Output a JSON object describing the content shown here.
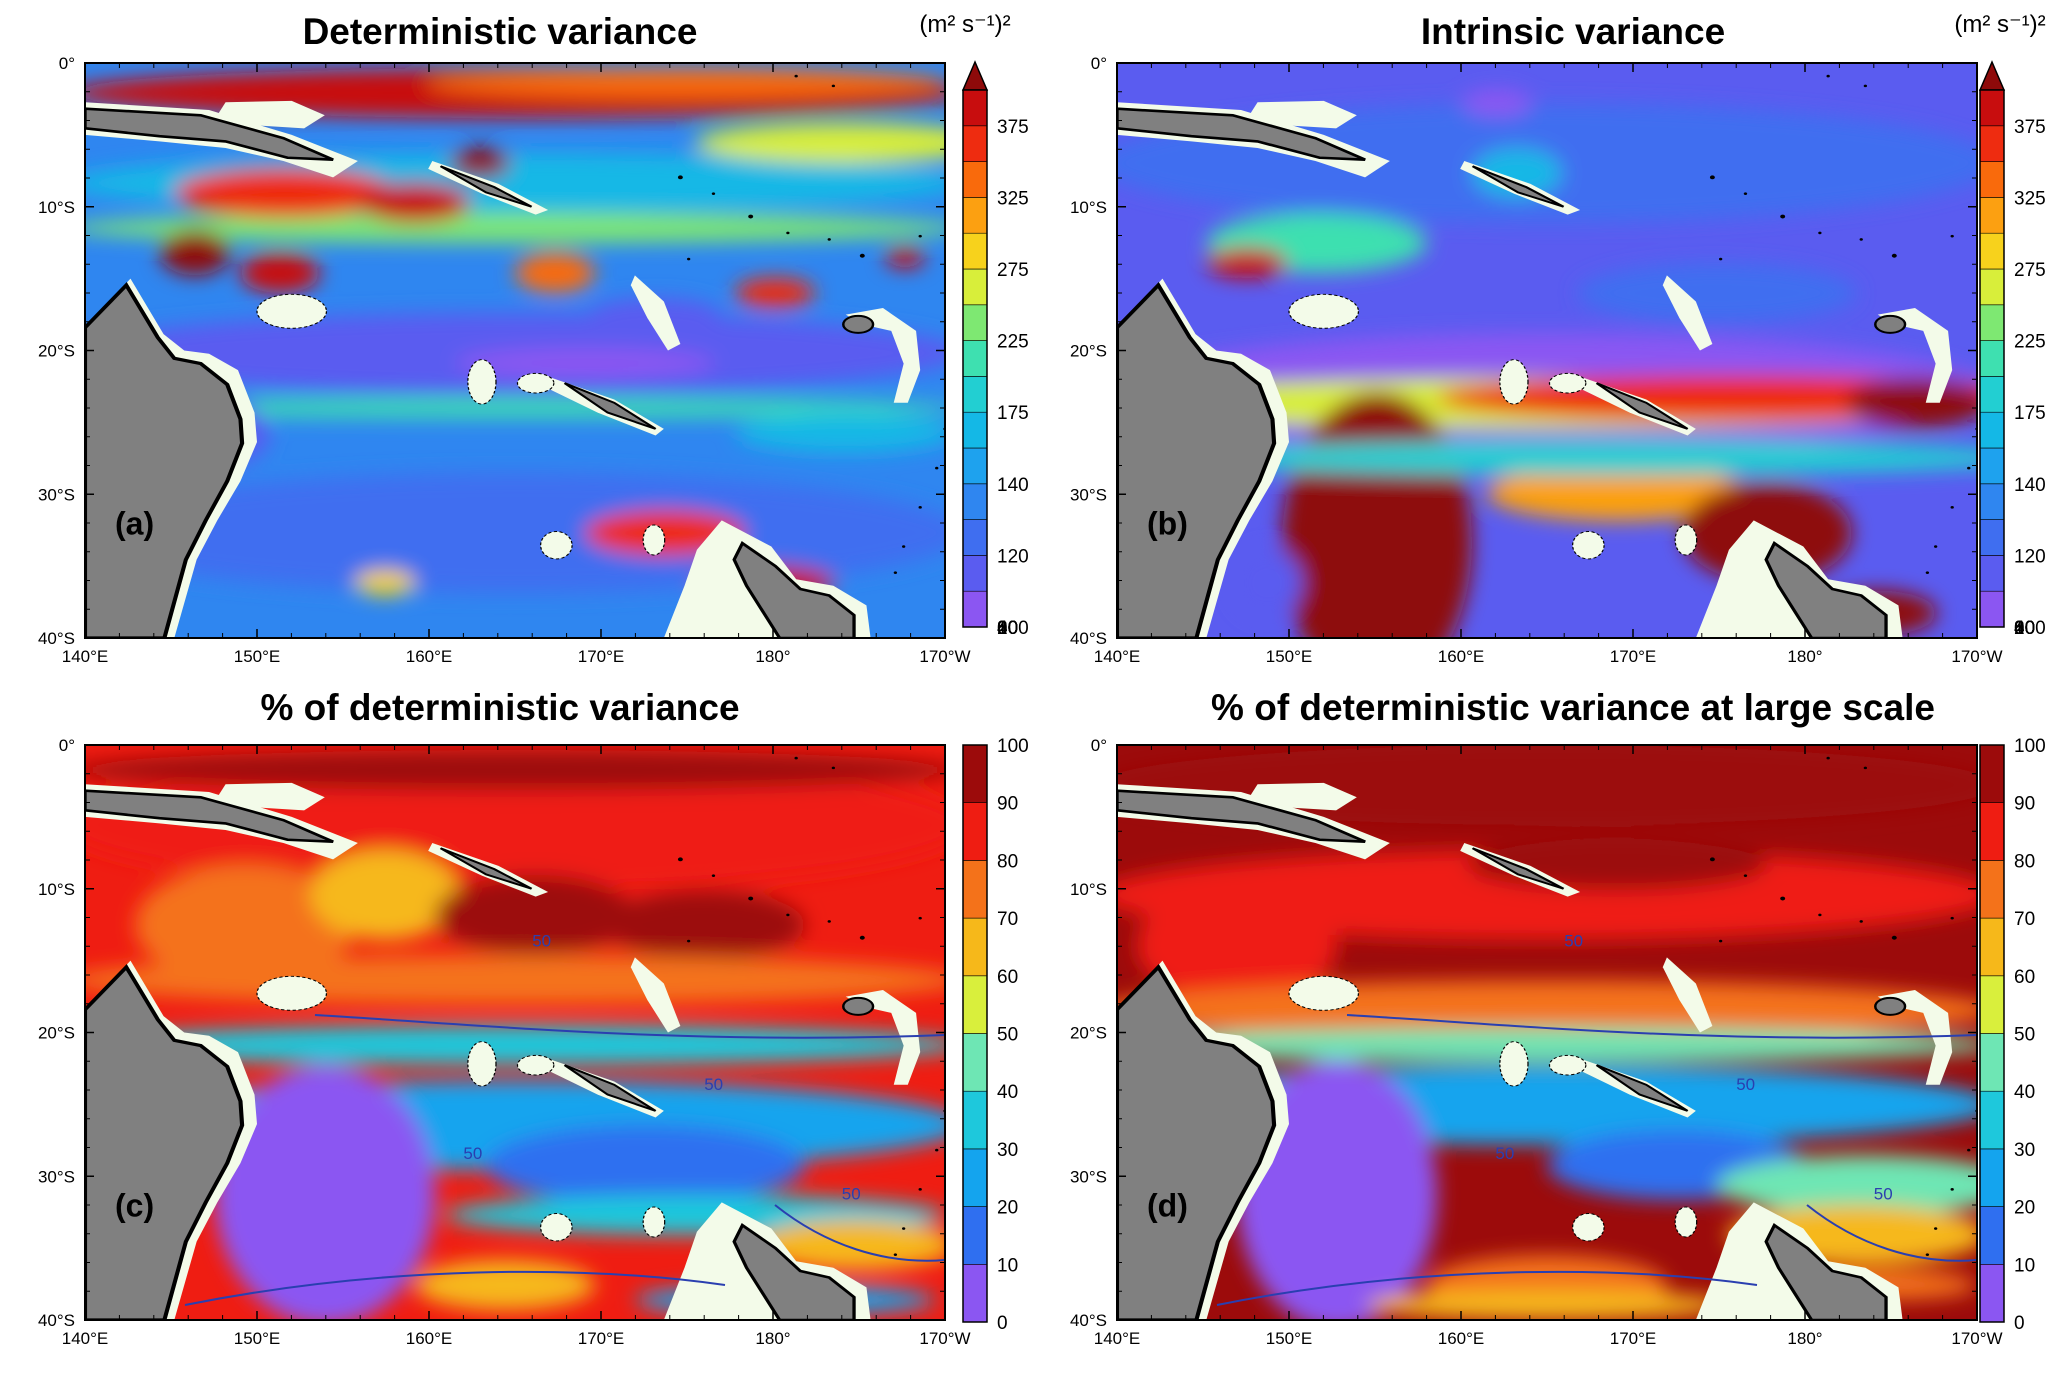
{
  "panels": [
    {
      "id": "a",
      "title": "Deterministic variance",
      "unit": "(m² s⁻¹)²",
      "label": "(a)",
      "scale": "variance",
      "colorbar_ticks": [
        "375",
        "325",
        "275",
        "225",
        "175",
        "140",
        "120",
        "100",
        "80",
        "60",
        "40",
        "20",
        "0"
      ]
    },
    {
      "id": "b",
      "title": "Intrinsic variance",
      "unit": "(m² s⁻¹)²",
      "label": "(b)",
      "scale": "variance",
      "colorbar_ticks": [
        "375",
        "325",
        "275",
        "225",
        "175",
        "140",
        "120",
        "100",
        "80",
        "60",
        "40",
        "20",
        "0"
      ]
    },
    {
      "id": "c",
      "title": "% of deterministic variance",
      "unit": "",
      "label": "(c)",
      "scale": "percent",
      "colorbar_ticks": [
        "100",
        "90",
        "80",
        "70",
        "60",
        "50",
        "40",
        "30",
        "20",
        "10",
        "0"
      ],
      "contour_label": "50"
    },
    {
      "id": "d",
      "title": "% of deterministic variance at large scale",
      "unit": "",
      "label": "(d)",
      "scale": "percent",
      "colorbar_ticks": [
        "100",
        "90",
        "80",
        "70",
        "60",
        "50",
        "40",
        "30",
        "20",
        "10",
        "0"
      ],
      "contour_label": "50"
    }
  ],
  "lat_ticks": [
    "0°",
    "10°S",
    "20°S",
    "30°S",
    "40°S"
  ],
  "lon_ticks": [
    "140°E",
    "150°E",
    "160°E",
    "170°E",
    "180°",
    "170°W"
  ],
  "colors": {
    "land": "#808080",
    "shelf": "#f3fbe9",
    "variance_scale": [
      "#8b56f2",
      "#5a5cf0",
      "#3f6ef0",
      "#2f86f0",
      "#1ea2ee",
      "#14b8e6",
      "#22cfd2",
      "#3ee0b0",
      "#7ee872",
      "#d8ee3a",
      "#f7d21c",
      "#fca011",
      "#f96a0c",
      "#ee2c10",
      "#c80d0e",
      "#8e0a0a"
    ],
    "percent_scale": [
      "#8b56f2",
      "#2f6ff0",
      "#14a4ee",
      "#1ec8dc",
      "#6ee6b4",
      "#d9ef3c",
      "#f6b81a",
      "#f4721a",
      "#ef1d12",
      "#9c0b0b"
    ]
  }
}
